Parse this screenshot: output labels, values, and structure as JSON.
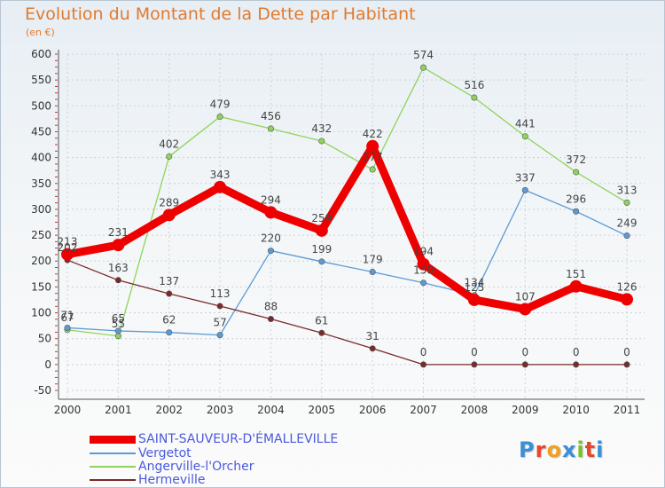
{
  "title": "Evolution du Montant de la Dette par Habitant",
  "subtitle": "(en €)",
  "logo_text": "Proxiti",
  "logo_colors": [
    "#3a8fd6",
    "#e8472b",
    "#f2a11d",
    "#3a8fd6",
    "#7cbf2e",
    "#e8472b",
    "#3a8fd6"
  ],
  "chart_data": {
    "type": "line",
    "x": [
      "2000",
      "2001",
      "2002",
      "2003",
      "2004",
      "2005",
      "2006",
      "2007",
      "2008",
      "2009",
      "2010",
      "2011"
    ],
    "ylim": [
      -50,
      600
    ],
    "yticks": [
      "-50",
      "0",
      "50",
      "100",
      "150",
      "200",
      "250",
      "300",
      "350",
      "400",
      "450",
      "500",
      "550",
      "600"
    ],
    "grid": true,
    "legend_position": "bottom-left",
    "series": [
      {
        "name": "SAINT-SAUVEUR-D'ÉMALLEVILLE",
        "color": "#ee0000",
        "values": [
          213,
          231,
          289,
          343,
          294,
          259,
          422,
          194,
          125,
          107,
          151,
          126
        ],
        "labels": [
          "213",
          "231",
          "289",
          "343",
          "294",
          "259",
          "422",
          "194",
          "125",
          "107",
          "151",
          "126"
        ]
      },
      {
        "name": "Vergetot",
        "color": "#5b9bd5",
        "values": [
          71,
          65,
          62,
          57,
          220,
          199,
          179,
          158,
          134,
          337,
          296,
          249
        ],
        "labels": [
          "71",
          "65",
          "62",
          "57",
          "220",
          "199",
          "179",
          "158",
          "134",
          "337",
          "296",
          "249"
        ]
      },
      {
        "name": "Angerville-l'Orcher",
        "color": "#8fd45a",
        "values": [
          67,
          55,
          402,
          479,
          456,
          432,
          377,
          574,
          516,
          441,
          372,
          313
        ],
        "labels": [
          "67",
          "55",
          "402",
          "479",
          "456",
          "432",
          "377",
          "574",
          "516",
          "441",
          "372",
          "313"
        ]
      },
      {
        "name": "Hermeville",
        "color": "#7a2a2a",
        "values": [
          202,
          163,
          137,
          113,
          88,
          61,
          31,
          0,
          0,
          0,
          0,
          0
        ],
        "labels": [
          "202",
          "163",
          "137",
          "113",
          "88",
          "61",
          "31",
          "0",
          "0",
          "0",
          "0",
          "0"
        ]
      }
    ]
  }
}
